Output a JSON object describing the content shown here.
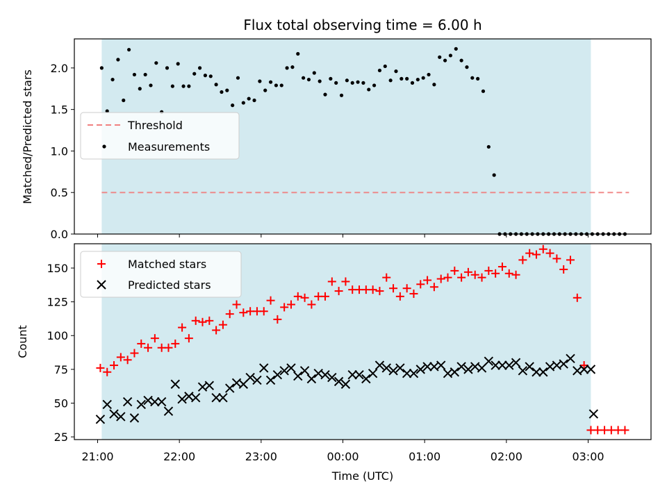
{
  "chart_data": [
    {
      "type": "scatter",
      "title": "Flux total observing time = 6.00 h",
      "ylabel": "Matched/Predicted stars",
      "ylim": [
        0,
        2.35
      ],
      "yticks": [
        0.0,
        0.5,
        1.0,
        1.5,
        2.0
      ],
      "ytick_labels": [
        "0.0",
        "0.5",
        "1.0",
        "1.5",
        "2.0"
      ],
      "shaded_region": {
        "start": "21:03",
        "end": "03:02",
        "color": "#d3eaf0"
      },
      "threshold": {
        "name": "Threshold",
        "value": 0.5,
        "x_start": "21:03",
        "x_end": "03:30",
        "color": "#f08080"
      },
      "series": [
        {
          "name": "Measurements",
          "color": "#000000",
          "x": [
            "21:03",
            "21:07",
            "21:11",
            "21:15",
            "21:19",
            "21:23",
            "21:27",
            "21:31",
            "21:35",
            "21:39",
            "21:43",
            "21:47",
            "21:51",
            "21:55",
            "21:59",
            "22:03",
            "22:07",
            "22:11",
            "22:15",
            "22:19",
            "22:23",
            "22:27",
            "22:31",
            "22:35",
            "22:39",
            "22:43",
            "22:47",
            "22:51",
            "22:55",
            "22:59",
            "23:03",
            "23:07",
            "23:11",
            "23:15",
            "23:19",
            "23:23",
            "23:27",
            "23:31",
            "23:35",
            "23:39",
            "23:43",
            "23:47",
            "23:51",
            "23:55",
            "23:59",
            "00:03",
            "00:07",
            "00:11",
            "00:15",
            "00:19",
            "00:23",
            "00:27",
            "00:31",
            "00:35",
            "00:39",
            "00:43",
            "00:47",
            "00:51",
            "00:55",
            "00:59",
            "01:03",
            "01:07",
            "01:11",
            "01:15",
            "01:19",
            "01:23",
            "01:27",
            "01:31",
            "01:35",
            "01:39",
            "01:43",
            "01:47",
            "01:51",
            "01:55",
            "01:59",
            "02:03",
            "02:07",
            "02:11",
            "02:15",
            "02:19",
            "02:23",
            "02:27",
            "02:31",
            "02:35",
            "02:39",
            "02:43",
            "02:47",
            "02:51",
            "02:55",
            "02:59",
            "03:03",
            "03:07",
            "03:11",
            "03:15",
            "03:19",
            "03:23",
            "03:27"
          ],
          "y": [
            2.0,
            1.48,
            1.86,
            2.1,
            1.61,
            2.22,
            1.92,
            1.75,
            1.92,
            1.79,
            2.06,
            1.47,
            2.0,
            1.78,
            2.05,
            1.78,
            1.78,
            1.93,
            2.0,
            1.91,
            1.9,
            1.8,
            1.71,
            1.73,
            1.55,
            1.88,
            1.58,
            1.63,
            1.61,
            1.84,
            1.73,
            1.83,
            1.79,
            1.79,
            2.0,
            2.01,
            2.17,
            1.88,
            1.86,
            1.94,
            1.84,
            1.68,
            1.87,
            1.82,
            1.67,
            1.85,
            1.82,
            1.83,
            1.82,
            1.74,
            1.79,
            1.97,
            2.02,
            1.85,
            1.96,
            1.87,
            1.87,
            1.82,
            1.86,
            1.88,
            1.92,
            1.8,
            2.13,
            2.09,
            2.15,
            2.23,
            2.09,
            2.01,
            1.88,
            1.87,
            1.72,
            1.05,
            0.71,
            0.0,
            0.0,
            0.0,
            0.0,
            0.0,
            0.0,
            0.0,
            0.0,
            0.0,
            0.0,
            0.0,
            0.0,
            0.0,
            0.0,
            0.0,
            0.0,
            0.0,
            0.0,
            0.0,
            0.0,
            0.0,
            0.0,
            0.0,
            0.0
          ]
        }
      ],
      "legend": [
        "Threshold",
        "Measurements"
      ],
      "legend_position": "center-left",
      "grid": false
    },
    {
      "type": "scatter",
      "xlabel": "Time (UTC)",
      "ylabel": "Count",
      "ylim": [
        23,
        168
      ],
      "yticks": [
        25,
        50,
        75,
        100,
        125,
        150
      ],
      "ytick_labels": [
        "25",
        "50",
        "75",
        "100",
        "125",
        "150"
      ],
      "xticks": [
        "21:00",
        "22:00",
        "23:00",
        "00:00",
        "01:00",
        "02:00",
        "03:00"
      ],
      "xtick_labels": [
        "21:00",
        "22:00",
        "23:00",
        "00:00",
        "01:00",
        "02:00",
        "03:00"
      ],
      "shaded_region": {
        "start": "21:03",
        "end": "03:02",
        "color": "#d3eaf0"
      },
      "series": [
        {
          "name": "Matched stars",
          "marker": "+",
          "color": "#ff0000",
          "x": [
            "21:02",
            "21:07",
            "21:12",
            "21:17",
            "21:22",
            "21:27",
            "21:32",
            "21:37",
            "21:42",
            "21:47",
            "21:52",
            "21:57",
            "22:02",
            "22:07",
            "22:12",
            "22:17",
            "22:22",
            "22:27",
            "22:32",
            "22:37",
            "22:42",
            "22:47",
            "22:52",
            "22:57",
            "23:02",
            "23:07",
            "23:12",
            "23:17",
            "23:22",
            "23:27",
            "23:32",
            "23:37",
            "23:42",
            "23:47",
            "23:52",
            "23:57",
            "00:02",
            "00:07",
            "00:12",
            "00:17",
            "00:22",
            "00:27",
            "00:32",
            "00:37",
            "00:42",
            "00:47",
            "00:52",
            "00:57",
            "01:02",
            "01:07",
            "01:12",
            "01:17",
            "01:22",
            "01:27",
            "01:32",
            "01:37",
            "01:42",
            "01:47",
            "01:52",
            "01:57",
            "02:02",
            "02:07",
            "02:12",
            "02:17",
            "02:22",
            "02:27",
            "02:32",
            "02:37",
            "02:42",
            "02:47",
            "02:52",
            "02:57",
            "03:02",
            "03:07",
            "03:12",
            "03:17",
            "03:22",
            "03:27"
          ],
          "y": [
            76,
            73,
            78,
            84,
            82,
            87,
            94,
            91,
            98,
            91,
            91,
            94,
            106,
            98,
            111,
            110,
            111,
            104,
            108,
            116,
            123,
            117,
            118,
            118,
            118,
            126,
            112,
            121,
            123,
            129,
            128,
            123,
            129,
            129,
            140,
            133,
            140,
            134,
            134,
            134,
            134,
            133,
            143,
            135,
            129,
            135,
            131,
            138,
            141,
            136,
            142,
            143,
            148,
            143,
            147,
            145,
            143,
            148,
            146,
            151,
            146,
            145,
            156,
            161,
            160,
            164,
            161,
            157,
            149,
            156,
            128,
            78,
            30,
            30,
            30,
            30,
            30,
            30
          ]
        },
        {
          "name": "Predicted stars",
          "marker": "x",
          "color": "#000000",
          "x": [
            "21:02",
            "21:07",
            "21:12",
            "21:17",
            "21:22",
            "21:27",
            "21:32",
            "21:37",
            "21:42",
            "21:47",
            "21:52",
            "21:57",
            "22:02",
            "22:07",
            "22:12",
            "22:17",
            "22:22",
            "22:27",
            "22:32",
            "22:37",
            "22:42",
            "22:47",
            "22:52",
            "22:57",
            "23:02",
            "23:07",
            "23:12",
            "23:17",
            "23:22",
            "23:27",
            "23:32",
            "23:37",
            "23:42",
            "23:47",
            "23:52",
            "23:57",
            "00:02",
            "00:07",
            "00:12",
            "00:17",
            "00:22",
            "00:27",
            "00:32",
            "00:37",
            "00:42",
            "00:47",
            "00:52",
            "00:57",
            "01:02",
            "01:07",
            "01:12",
            "01:17",
            "01:22",
            "01:27",
            "01:32",
            "01:37",
            "01:42",
            "01:47",
            "01:52",
            "01:57",
            "02:02",
            "02:07",
            "02:12",
            "02:17",
            "02:22",
            "02:27",
            "02:32",
            "02:37",
            "02:42",
            "02:47",
            "02:52",
            "02:57",
            "03:02",
            "03:04"
          ],
          "y": [
            38,
            49,
            42,
            40,
            51,
            39,
            49,
            52,
            51,
            51,
            44,
            64,
            53,
            55,
            54,
            62,
            63,
            54,
            54,
            61,
            65,
            64,
            69,
            67,
            76,
            67,
            71,
            74,
            76,
            70,
            74,
            68,
            72,
            71,
            69,
            66,
            64,
            71,
            71,
            68,
            72,
            78,
            76,
            74,
            76,
            72,
            72,
            75,
            77,
            77,
            78,
            72,
            73,
            77,
            75,
            77,
            76,
            81,
            78,
            78,
            78,
            80,
            74,
            77,
            73,
            73,
            77,
            78,
            79,
            83,
            74,
            75,
            75,
            42
          ]
        }
      ],
      "legend": [
        "Matched stars",
        "Predicted stars"
      ],
      "legend_position": "upper-left",
      "grid": false
    }
  ]
}
